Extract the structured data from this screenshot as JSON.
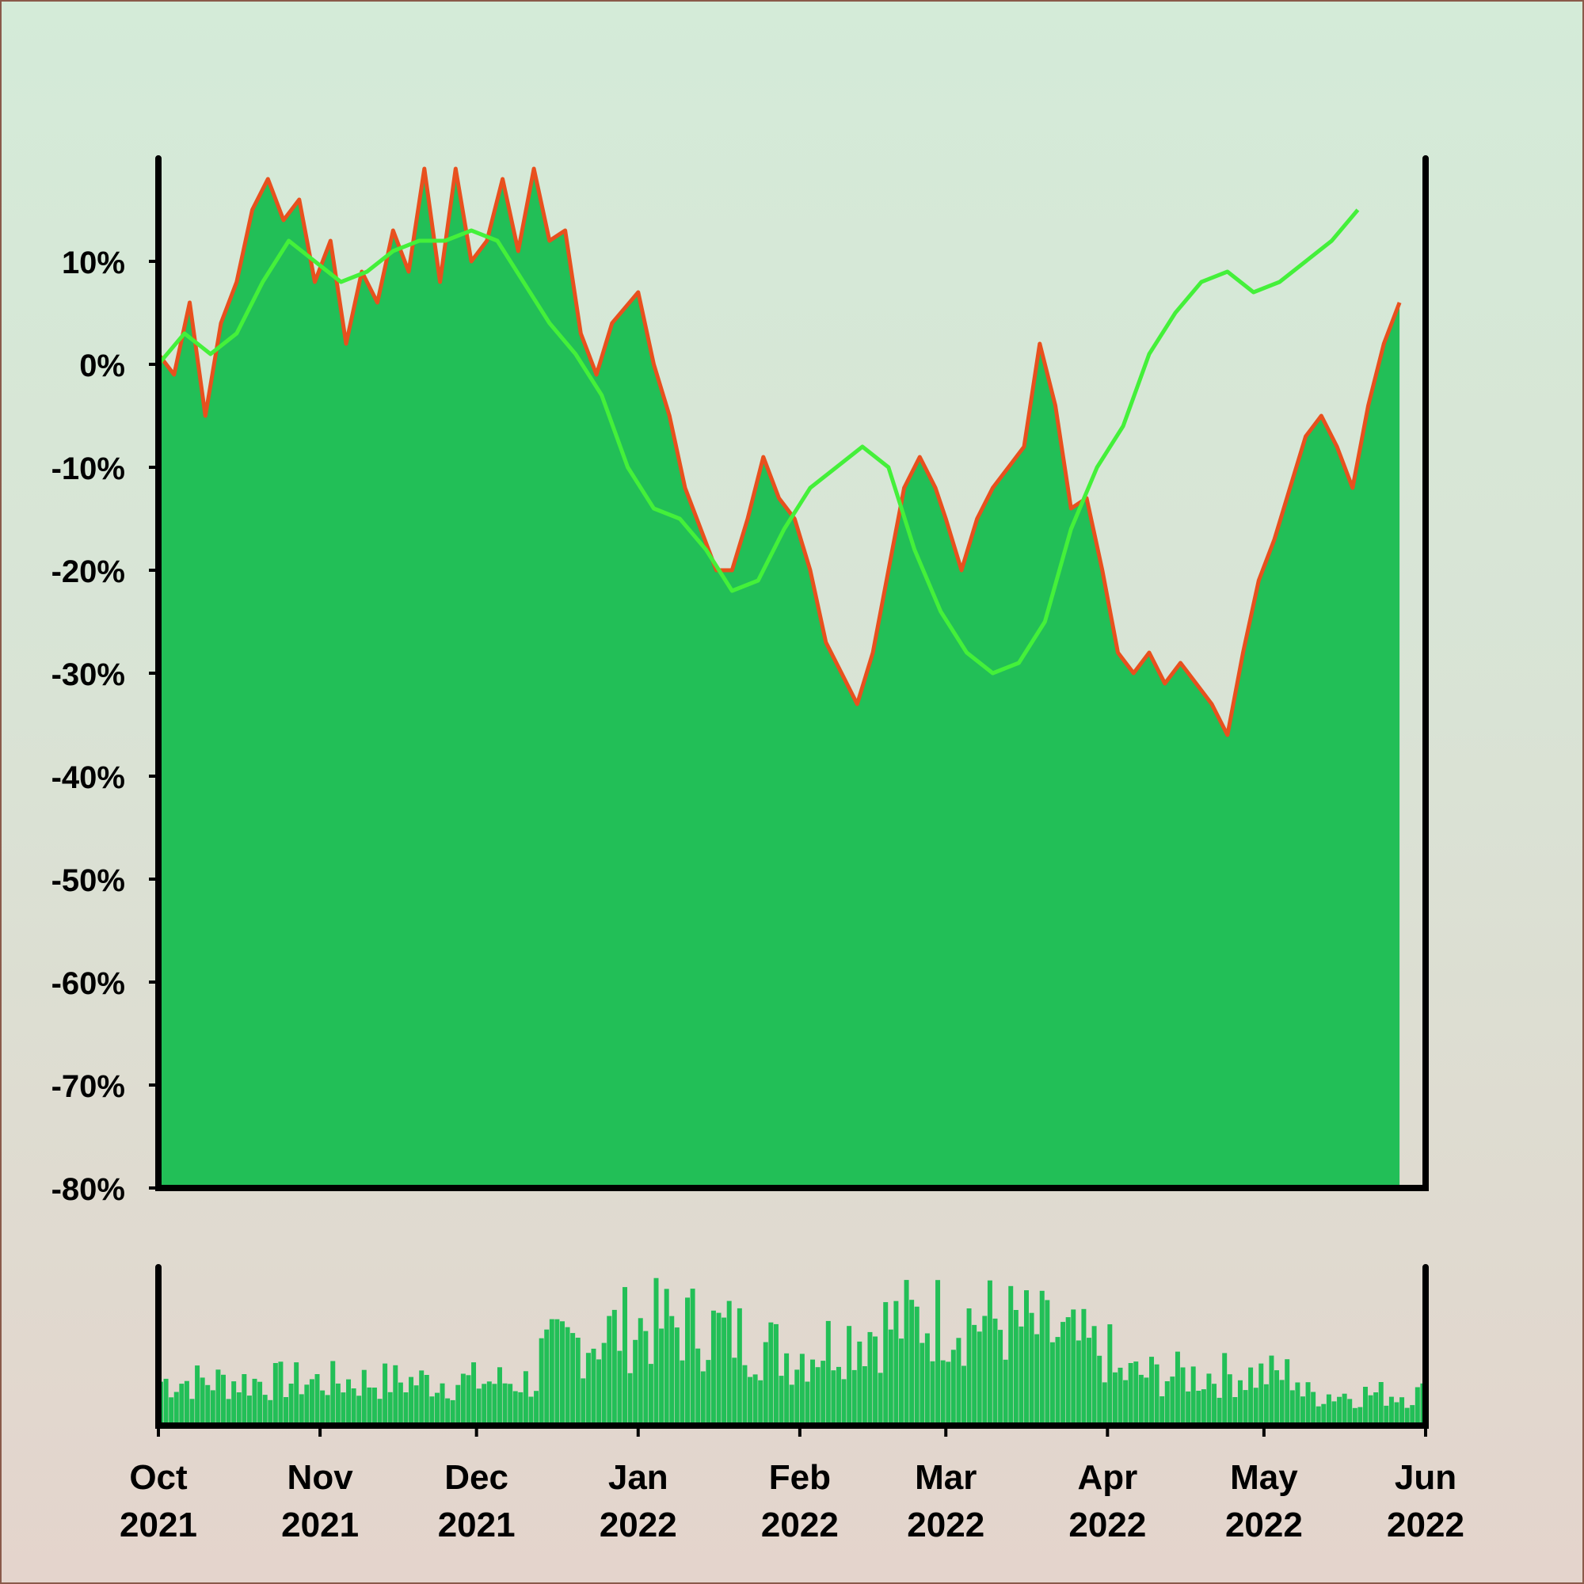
{
  "chart_data": {
    "type": "area",
    "title": "",
    "xlabel": "",
    "ylabel": "",
    "x_start": "2021-10-01",
    "x_end": "2022-06-01",
    "ylim": [
      -80,
      20
    ],
    "yticks": [
      10,
      0,
      -10,
      -20,
      -30,
      -40,
      -50,
      -60,
      -70,
      -80
    ],
    "ytick_labels": [
      "10%",
      "0%",
      "-10%",
      "-20%",
      "-30%",
      "-40%",
      "-50%",
      "-60%",
      "-70%",
      "-80%"
    ],
    "xticks": [
      {
        "month": "Oct",
        "year": "2021",
        "date": "2021-10-01"
      },
      {
        "month": "Nov",
        "year": "2021",
        "date": "2021-11-01"
      },
      {
        "month": "Dec",
        "year": "2021",
        "date": "2021-12-01"
      },
      {
        "month": "Jan",
        "year": "2022",
        "date": "2022-01-01"
      },
      {
        "month": "Feb",
        "year": "2022",
        "date": "2022-02-01"
      },
      {
        "month": "Mar",
        "year": "2022",
        "date": "2022-03-01"
      },
      {
        "month": "Apr",
        "year": "2022",
        "date": "2022-04-01"
      },
      {
        "month": "May",
        "year": "2022",
        "date": "2022-05-01"
      },
      {
        "month": "Jun",
        "year": "2022",
        "date": "2022-06-01"
      }
    ],
    "grid": false,
    "colors": {
      "fill": "#22bf57",
      "price_line": "#e8501e",
      "moving_average": "#44f03a",
      "volume": "#22bf57",
      "axis": "#000000"
    },
    "series": [
      {
        "points": [
          [
            "2021-10-01",
            1
          ],
          [
            "2021-10-04",
            -1
          ],
          [
            "2021-10-07",
            6
          ],
          [
            "2021-10-10",
            -5
          ],
          [
            "2021-10-13",
            4
          ],
          [
            "2021-10-16",
            8
          ],
          [
            "2021-10-19",
            15
          ],
          [
            "2021-10-22",
            18
          ],
          [
            "2021-10-25",
            14
          ],
          [
            "2021-10-28",
            16
          ],
          [
            "2021-10-31",
            8
          ],
          [
            "2021-11-03",
            12
          ],
          [
            "2021-11-06",
            2
          ],
          [
            "2021-11-09",
            9
          ],
          [
            "2021-11-12",
            6
          ],
          [
            "2021-11-15",
            13
          ],
          [
            "2021-11-18",
            9
          ],
          [
            "2021-11-21",
            19
          ],
          [
            "2021-11-24",
            8
          ],
          [
            "2021-11-27",
            19
          ],
          [
            "2021-11-30",
            10
          ],
          [
            "2021-12-03",
            12
          ],
          [
            "2021-12-06",
            18
          ],
          [
            "2021-12-09",
            11
          ],
          [
            "2021-12-12",
            19
          ],
          [
            "2021-12-15",
            12
          ],
          [
            "2021-12-18",
            13
          ],
          [
            "2021-12-21",
            3
          ],
          [
            "2021-12-24",
            -1
          ],
          [
            "2021-12-27",
            4
          ],
          [
            "2022-01-01",
            7
          ],
          [
            "2022-01-04",
            0
          ],
          [
            "2022-01-07",
            -5
          ],
          [
            "2022-01-10",
            -12
          ],
          [
            "2022-01-13",
            -16
          ],
          [
            "2022-01-16",
            -20
          ],
          [
            "2022-01-19",
            -20
          ],
          [
            "2022-01-22",
            -15
          ],
          [
            "2022-01-25",
            -9
          ],
          [
            "2022-01-28",
            -13
          ],
          [
            "2022-01-31",
            -15
          ],
          [
            "2022-02-03",
            -20
          ],
          [
            "2022-02-06",
            -27
          ],
          [
            "2022-02-09",
            -30
          ],
          [
            "2022-02-12",
            -33
          ],
          [
            "2022-02-15",
            -28
          ],
          [
            "2022-02-18",
            -20
          ],
          [
            "2022-02-21",
            -12
          ],
          [
            "2022-02-24",
            -9
          ],
          [
            "2022-02-27",
            -12
          ],
          [
            "2022-03-01",
            -15
          ],
          [
            "2022-03-04",
            -20
          ],
          [
            "2022-03-07",
            -15
          ],
          [
            "2022-03-10",
            -12
          ],
          [
            "2022-03-13",
            -10
          ],
          [
            "2022-03-16",
            -8
          ],
          [
            "2022-03-19",
            2
          ],
          [
            "2022-03-22",
            -4
          ],
          [
            "2022-03-25",
            -14
          ],
          [
            "2022-03-28",
            -13
          ],
          [
            "2022-03-31",
            -20
          ],
          [
            "2022-04-03",
            -28
          ],
          [
            "2022-04-06",
            -30
          ],
          [
            "2022-04-09",
            -28
          ],
          [
            "2022-04-12",
            -31
          ],
          [
            "2022-04-15",
            -29
          ],
          [
            "2022-04-18",
            -31
          ],
          [
            "2022-04-21",
            -33
          ],
          [
            "2022-04-24",
            -36
          ],
          [
            "2022-04-27",
            -28
          ],
          [
            "2022-04-30",
            -21
          ],
          [
            "2022-05-03",
            -17
          ],
          [
            "2022-05-06",
            -12
          ],
          [
            "2022-05-09",
            -7
          ],
          [
            "2022-05-12",
            -5
          ],
          [
            "2022-05-15",
            -8
          ],
          [
            "2022-05-18",
            -12
          ],
          [
            "2022-05-21",
            -4
          ],
          [
            "2022-05-24",
            2
          ],
          [
            "2022-05-27",
            6
          ]
        ]
      },
      {
        "points": [
          [
            "2021-10-01",
            0
          ],
          [
            "2021-10-06",
            3
          ],
          [
            "2021-10-11",
            1
          ],
          [
            "2021-10-16",
            3
          ],
          [
            "2021-10-21",
            8
          ],
          [
            "2021-10-26",
            12
          ],
          [
            "2021-10-31",
            10
          ],
          [
            "2021-11-05",
            8
          ],
          [
            "2021-11-10",
            9
          ],
          [
            "2021-11-15",
            11
          ],
          [
            "2021-11-20",
            12
          ],
          [
            "2021-11-25",
            12
          ],
          [
            "2021-11-30",
            13
          ],
          [
            "2021-12-05",
            12
          ],
          [
            "2021-12-10",
            8
          ],
          [
            "2021-12-15",
            4
          ],
          [
            "2021-12-20",
            1
          ],
          [
            "2021-12-25",
            -3
          ],
          [
            "2021-12-30",
            -10
          ],
          [
            "2022-01-04",
            -14
          ],
          [
            "2022-01-09",
            -15
          ],
          [
            "2022-01-14",
            -18
          ],
          [
            "2022-01-19",
            -22
          ],
          [
            "2022-01-24",
            -21
          ],
          [
            "2022-01-29",
            -16
          ],
          [
            "2022-02-03",
            -12
          ],
          [
            "2022-02-08",
            -10
          ],
          [
            "2022-02-13",
            -8
          ],
          [
            "2022-02-18",
            -10
          ],
          [
            "2022-02-23",
            -18
          ],
          [
            "2022-02-28",
            -24
          ],
          [
            "2022-03-05",
            -28
          ],
          [
            "2022-03-10",
            -30
          ],
          [
            "2022-03-15",
            -29
          ],
          [
            "2022-03-20",
            -25
          ],
          [
            "2022-03-25",
            -16
          ],
          [
            "2022-03-30",
            -10
          ],
          [
            "2022-04-04",
            -6
          ],
          [
            "2022-04-09",
            1
          ],
          [
            "2022-04-14",
            5
          ],
          [
            "2022-04-19",
            8
          ],
          [
            "2022-04-24",
            9
          ],
          [
            "2022-04-29",
            7
          ],
          [
            "2022-05-04",
            8
          ],
          [
            "2022-05-09",
            10
          ],
          [
            "2022-05-14",
            12
          ],
          [
            "2022-05-19",
            15
          ]
        ]
      }
    ],
    "volume": {
      "note_levels": "relative 0-1"
    }
  }
}
